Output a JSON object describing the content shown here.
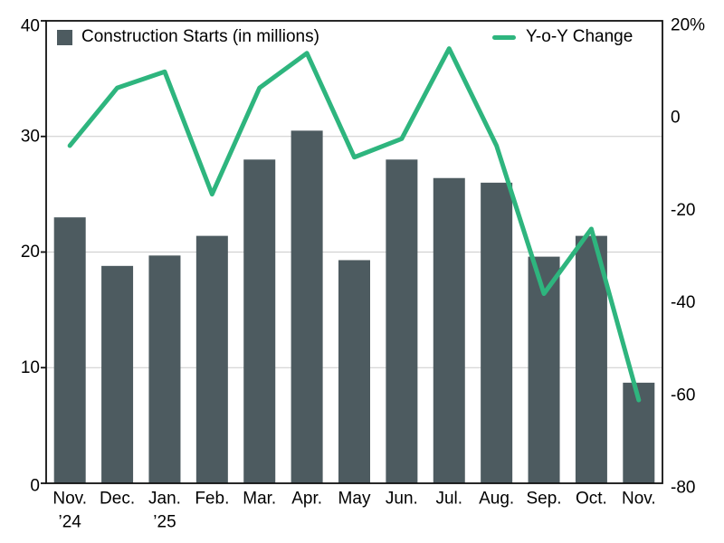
{
  "chart_data": {
    "type": "combo",
    "title": "",
    "categories": [
      "Nov.",
      "Dec.",
      "Jan.",
      "Feb.",
      "Mar.",
      "Apr.",
      "May",
      "Jun.",
      "Jul.",
      "Aug.",
      "Sep.",
      "Oct.",
      "Nov."
    ],
    "category_sublabels": [
      "’24",
      "",
      "’25",
      "",
      "",
      "",
      "",
      "",
      "",
      "",
      "",
      "",
      ""
    ],
    "series": [
      {
        "name": "Construction Starts (in millions)",
        "type": "bar",
        "axis": "left",
        "color": "#4d5b60",
        "values": [
          23,
          18.8,
          19.7,
          21.4,
          28,
          30.5,
          19.3,
          28,
          26.4,
          26,
          19.6,
          21.4,
          8.7
        ]
      },
      {
        "name": "Y-o-Y Change",
        "type": "line",
        "axis": "right",
        "color": "#2eb57e",
        "values": [
          -7,
          5.5,
          9,
          -17.5,
          5.5,
          13,
          -9.5,
          -5.5,
          14,
          -7,
          -39,
          -25,
          -62
        ]
      }
    ],
    "left_axis": {
      "range": [
        0,
        40
      ],
      "ticks": [
        0,
        10,
        20,
        30,
        40
      ],
      "tick_labels": [
        "0",
        "10",
        "20",
        "30",
        "40"
      ]
    },
    "right_axis": {
      "range": [
        -80,
        20
      ],
      "ticks": [
        20,
        0,
        -20,
        -40,
        -60,
        -80
      ],
      "tick_labels": [
        "20%",
        "0",
        "-20",
        "-40",
        "-60",
        "-80"
      ]
    },
    "gridlines_at_left_values": [
      10,
      20,
      30
    ],
    "legend_position": "top-inside",
    "grid": "horizontal"
  },
  "legend": {
    "bar_label": "Construction Starts (in millions)",
    "line_label": "Y-o-Y Change"
  },
  "colors": {
    "bar": "#4d5b60",
    "line": "#2eb57e",
    "grid": "#cccccc",
    "frame": "#111111",
    "text": "#000000",
    "background": "#ffffff"
  }
}
